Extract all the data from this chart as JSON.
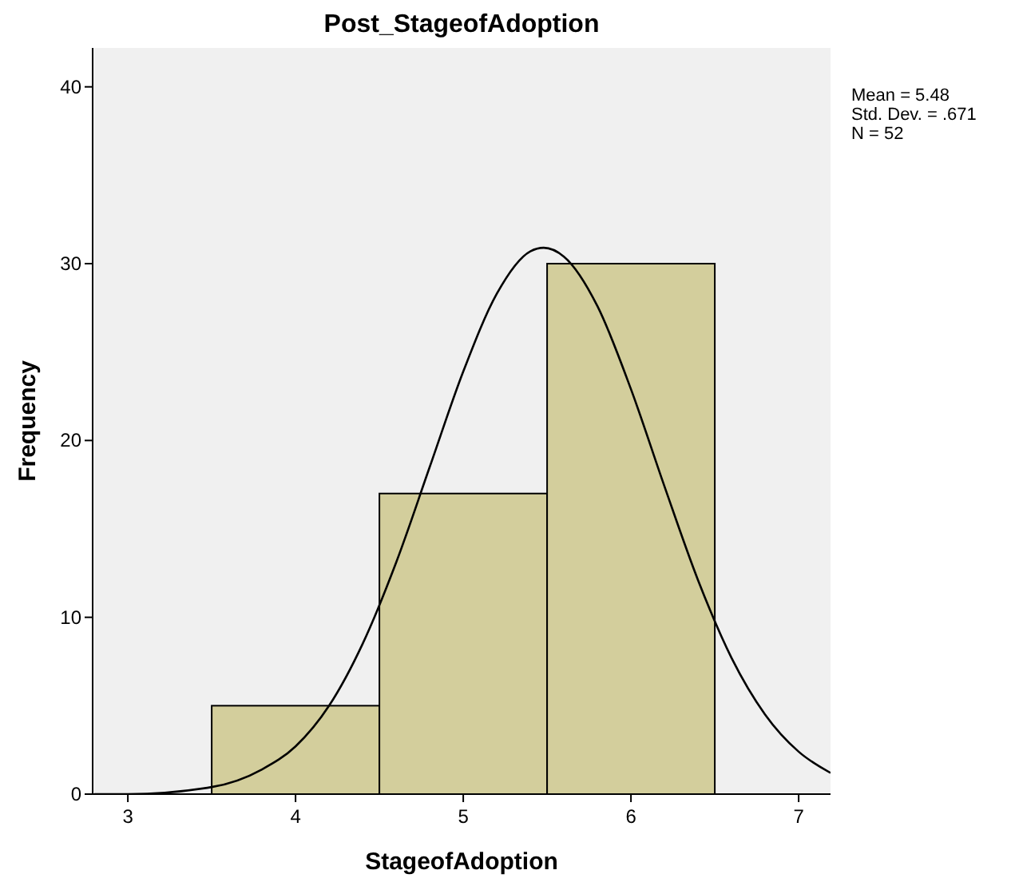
{
  "chart_data": {
    "type": "histogram",
    "title": "Post_StageofAdoption",
    "xlabel": "StageofAdoption",
    "ylabel": "Frequency",
    "bins": [
      3.5,
      4.5,
      5.5,
      6.5
    ],
    "values": [
      5,
      17,
      30
    ],
    "color": "#d3ce9c",
    "series": [
      {
        "type": "line",
        "color": "#000000",
        "x": [
          2.8,
          3.0,
          3.5,
          3.8,
          4.0,
          4.2,
          4.4,
          4.6,
          4.8,
          5.0,
          5.2,
          5.4,
          5.48,
          5.6,
          5.8,
          6.0,
          6.2,
          6.4,
          6.6,
          6.8,
          7.0,
          7.19
        ],
        "values": [
          0.0,
          0.0,
          0.4,
          1.4,
          2.7,
          5.0,
          8.5,
          13.1,
          18.5,
          23.9,
          28.3,
          30.7,
          30.9,
          30.4,
          27.6,
          22.9,
          17.4,
          12.1,
          7.7,
          4.5,
          2.4,
          1.2
        ]
      }
    ],
    "xlim": [
      2.79,
      7.19
    ],
    "xticks": [
      3,
      4,
      5,
      6,
      7
    ],
    "ylim": [
      0,
      42.2
    ],
    "yticks": [
      0,
      10,
      20,
      30,
      40
    ],
    "annotations": [
      "Mean = 5.48",
      "Std. Dev. = .671",
      "N = 52"
    ]
  }
}
